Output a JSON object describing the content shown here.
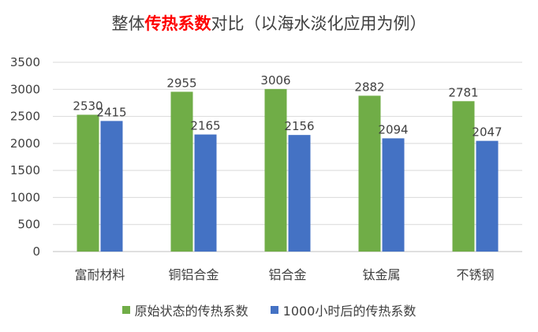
{
  "title": {
    "prefix": "整体",
    "highlight": "传热系数",
    "suffix": "对比（以海水淡化应用为例）"
  },
  "colors": {
    "series1": "#70ad47",
    "series2": "#4472c4",
    "highlight": "#ff0000"
  },
  "chart_data": {
    "type": "bar",
    "title": "整体传热系数对比（以海水淡化应用为例）",
    "categories": [
      "富耐材料",
      "铜铝合金",
      "铝合金",
      "钛金属",
      "不锈钢"
    ],
    "series": [
      {
        "name": "原始状态的传热系数",
        "values": [
          2530,
          2955,
          3006,
          2882,
          2781
        ]
      },
      {
        "name": "1000小时后的传热系数",
        "values": [
          2415,
          2165,
          2156,
          2094,
          2047
        ]
      }
    ],
    "ylim": [
      0,
      3500
    ],
    "yticks": [
      "0",
      "500",
      "1000",
      "1500",
      "2000",
      "2500",
      "3000",
      "3500"
    ],
    "grid": true,
    "legend": "bottom"
  }
}
